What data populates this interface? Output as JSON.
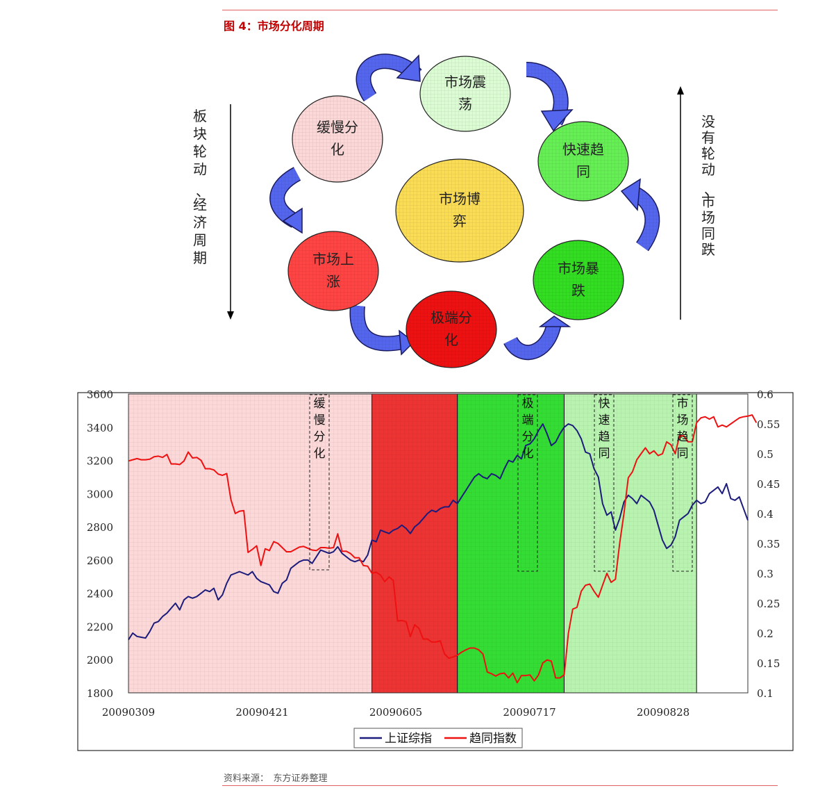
{
  "figure": {
    "title": "图 4：市场分化周期",
    "source": "资料来源：　东方证券整理"
  },
  "diagram": {
    "center": "市场博弈",
    "nodes": [
      {
        "label": "市场震荡",
        "color": "#dcfcd4"
      },
      {
        "label": "快速趋同",
        "color": "#66ee55"
      },
      {
        "label": "市场暴跌",
        "color": "#33dd22"
      },
      {
        "label": "极端分化",
        "color": "#ee1111"
      },
      {
        "label": "市场上涨",
        "color": "#ff4444"
      },
      {
        "label": "缓慢分化",
        "color": "#fcd8d8"
      }
    ],
    "left_side_text": "板块轮动、经济周期",
    "right_side_text": "没有轮动、市场同跌",
    "arrow_color": "#5566ee"
  },
  "chart_data": {
    "type": "line",
    "x_ticks": [
      "20090309",
      "20090421",
      "20090605",
      "20090717",
      "20090828"
    ],
    "y_left": {
      "min": 1800,
      "max": 3600,
      "ticks": [
        1800,
        2000,
        2200,
        2400,
        2600,
        2800,
        3000,
        3200,
        3400,
        3600
      ]
    },
    "y_right": {
      "min": 0.1,
      "max": 0.6,
      "ticks": [
        "0.1",
        "0.15",
        "0.2",
        "0.25",
        "0.3",
        "0.35",
        "0.4",
        "0.45",
        "0.5",
        "0.55",
        "0.6"
      ]
    },
    "legend_position": "bottom",
    "series": [
      {
        "name": "上证综指",
        "color": "#1c1c7c",
        "axis": "left",
        "values": [
          2120,
          2160,
          2140,
          2135,
          2130,
          2170,
          2220,
          2230,
          2260,
          2280,
          2310,
          2340,
          2300,
          2360,
          2380,
          2370,
          2380,
          2400,
          2420,
          2410,
          2430,
          2360,
          2390,
          2460,
          2510,
          2520,
          2530,
          2520,
          2510,
          2530,
          2490,
          2470,
          2460,
          2450,
          2410,
          2400,
          2460,
          2480,
          2550,
          2570,
          2590,
          2600,
          2600,
          2580,
          2620,
          2660,
          2650,
          2640,
          2650,
          2680,
          2640,
          2620,
          2600,
          2590,
          2600,
          2590,
          2630,
          2720,
          2710,
          2780,
          2770,
          2760,
          2780,
          2790,
          2810,
          2790,
          2760,
          2800,
          2820,
          2850,
          2880,
          2900,
          2890,
          2910,
          2920,
          2920,
          2960,
          2940,
          2980,
          3020,
          3060,
          3100,
          3120,
          3100,
          3090,
          3120,
          3110,
          3090,
          3150,
          3200,
          3190,
          3230,
          3210,
          3290,
          3300,
          3330,
          3380,
          3420,
          3360,
          3290,
          3310,
          3360,
          3400,
          3420,
          3410,
          3380,
          3330,
          3250,
          3240,
          3150,
          3100,
          2940,
          2870,
          2890,
          2780,
          2850,
          2950,
          2990,
          2970,
          2940,
          2990,
          2970,
          2950,
          2900,
          2810,
          2720,
          2670,
          2690,
          2740,
          2840,
          2860,
          2880,
          2930,
          2960,
          2940,
          2950,
          3000,
          3020,
          3040,
          3000,
          3060,
          2970,
          2960,
          2980,
          2910,
          2840
        ]
      },
      {
        "name": "趋同指数",
        "color": "#ee1111",
        "axis": "right",
        "values": [
          0.488,
          0.49,
          0.492,
          0.49,
          0.49,
          0.491,
          0.495,
          0.496,
          0.494,
          0.499,
          0.483,
          0.483,
          0.482,
          0.488,
          0.503,
          0.493,
          0.494,
          0.489,
          0.475,
          0.475,
          0.473,
          0.466,
          0.464,
          0.467,
          0.423,
          0.4,
          0.404,
          0.405,
          0.335,
          0.34,
          0.346,
          0.313,
          0.341,
          0.338,
          0.353,
          0.35,
          0.343,
          0.336,
          0.336,
          0.34,
          0.344,
          0.345,
          0.342,
          0.339,
          0.338,
          0.343,
          0.343,
          0.342,
          0.343,
          0.366,
          0.337,
          0.337,
          0.333,
          0.326,
          0.326,
          0.313,
          0.312,
          0.3,
          0.302,
          0.297,
          0.286,
          0.294,
          0.288,
          0.22,
          0.221,
          0.219,
          0.194,
          0.214,
          0.208,
          0.19,
          0.19,
          0.185,
          0.185,
          0.187,
          0.165,
          0.158,
          0.16,
          0.163,
          0.168,
          0.172,
          0.175,
          0.175,
          0.172,
          0.165,
          0.135,
          0.132,
          0.128,
          0.132,
          0.133,
          0.125,
          0.133,
          0.117,
          0.129,
          0.129,
          0.13,
          0.12,
          0.13,
          0.15,
          0.155,
          0.153,
          0.125,
          0.125,
          0.13,
          0.2,
          0.24,
          0.243,
          0.27,
          0.28,
          0.282,
          0.27,
          0.26,
          0.28,
          0.3,
          0.285,
          0.29,
          0.35,
          0.4,
          0.46,
          0.47,
          0.49,
          0.5,
          0.51,
          0.5,
          0.505,
          0.497,
          0.5,
          0.52,
          0.515,
          0.5,
          0.53,
          0.53,
          0.52,
          0.52,
          0.552,
          0.56,
          0.562,
          0.558,
          0.562,
          0.545,
          0.548,
          0.545,
          0.55,
          0.555,
          0.56,
          0.562,
          0.563,
          0.565,
          0.552
        ]
      }
    ],
    "regions": [
      {
        "label": "缓慢分化",
        "from": 0,
        "to": 57,
        "color": "#fcd8d8"
      },
      {
        "label": "极端分化",
        "from": 57,
        "to": 77,
        "color": "#ee3333"
      },
      {
        "label": "快速趋同",
        "from": 77,
        "to": 102,
        "color": "#33dd33"
      },
      {
        "label": "市场趋同",
        "from": 102,
        "to": 133,
        "color": "#b8f4b0"
      }
    ]
  }
}
